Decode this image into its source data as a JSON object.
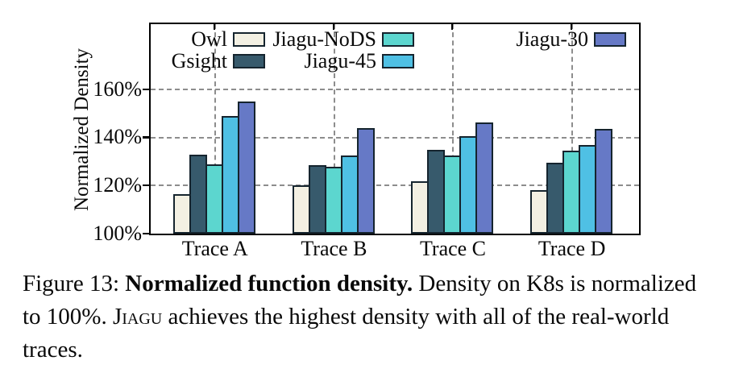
{
  "chart_data": {
    "type": "bar",
    "title": "",
    "xlabel": "",
    "ylabel": "Normalized Density",
    "categories": [
      "Trace A",
      "Trace B",
      "Trace C",
      "Trace D"
    ],
    "series": [
      {
        "name": "Owl",
        "color": "#f3f0e3",
        "values": [
          116.5,
          120,
          122,
          118
        ]
      },
      {
        "name": "Gsight",
        "color": "#375a6c",
        "values": [
          133,
          128.5,
          135,
          129.5
        ]
      },
      {
        "name": "Jiagu-NoDS",
        "color": "#5cd6cf",
        "values": [
          129,
          128,
          132.5,
          134.5
        ]
      },
      {
        "name": "Jiagu-45",
        "color": "#4fc0e4",
        "values": [
          149,
          132.5,
          140.5,
          137
        ]
      },
      {
        "name": "Jiagu-30",
        "color": "#6679c6",
        "values": [
          155,
          144,
          146.5,
          143.5
        ]
      }
    ],
    "ylim": [
      100,
      187
    ],
    "yticks": [
      100,
      120,
      140,
      160
    ],
    "ytick_labels": [
      "100%",
      "120%",
      "140%",
      "160%"
    ],
    "grid": true,
    "legend_position": "top-inside",
    "legend_rows": [
      [
        "Owl",
        "Jiagu-NoDS",
        "Jiagu-30"
      ],
      [
        "Gsight",
        "Jiagu-45"
      ]
    ]
  },
  "caption": {
    "prefix": "Figure 13: ",
    "bold": "Normalized function density.",
    "middle": " Density on K8s is normalized to 100%. ",
    "smallcaps": "Jiagu",
    "suffix": " achieves the highest density with all of the real-world traces."
  }
}
